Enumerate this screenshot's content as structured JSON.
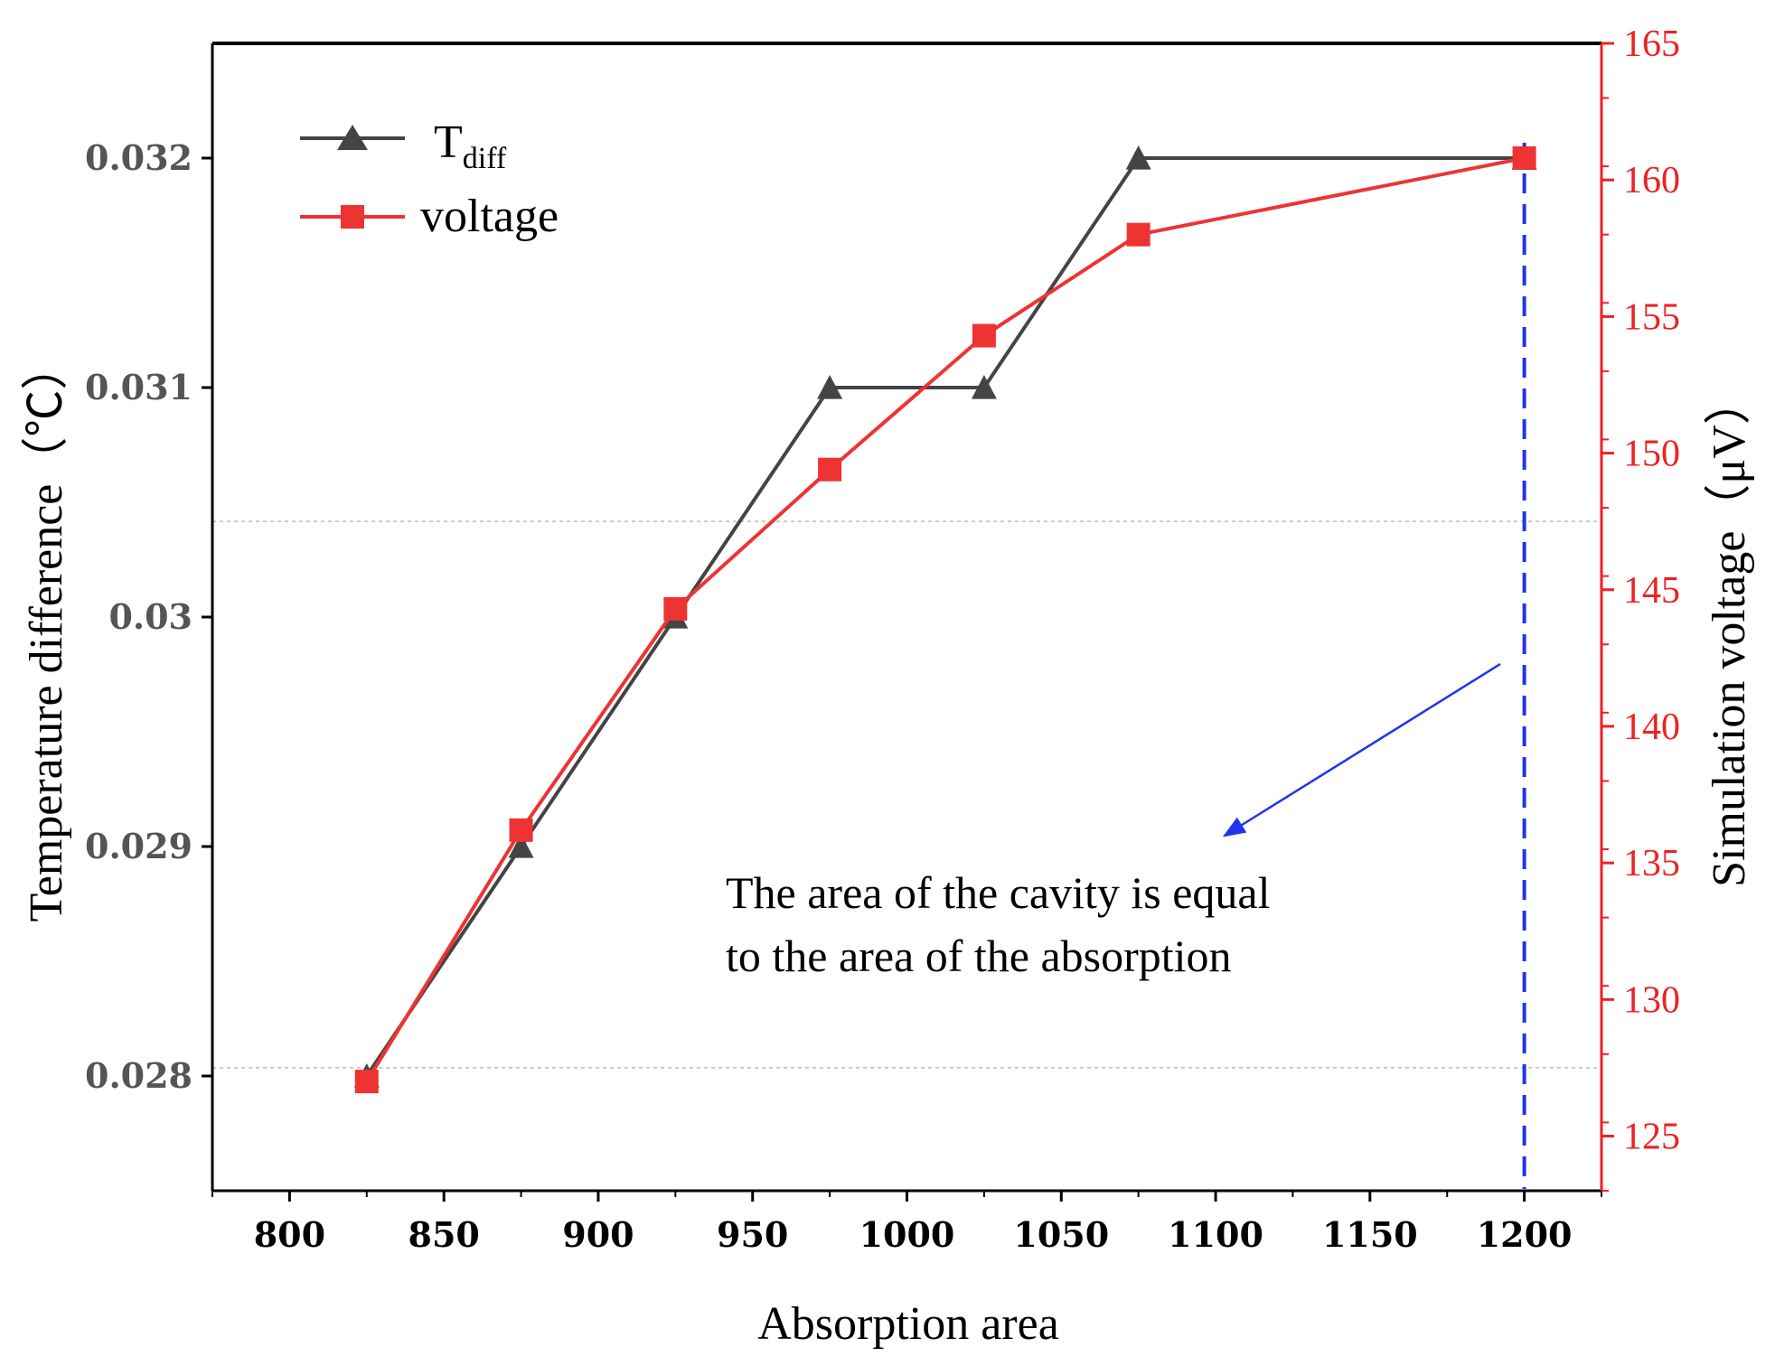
{
  "chart_data": {
    "type": "line",
    "title": "",
    "xlabel": "Absorption area",
    "ylabel_left": "Temperature difference（℃）",
    "ylabel_right": "Simulation voltage（μV）",
    "x_ticks": [
      "800",
      "850",
      "900",
      "950",
      "1000",
      "1050",
      "1100",
      "1150",
      "1200"
    ],
    "xlim": [
      775,
      1225
    ],
    "y_left_ticks": [
      "0.028",
      "0.029",
      "0.03",
      "0.031",
      "0.032"
    ],
    "y_left_tick_values": [
      0.028,
      0.029,
      0.03,
      0.031,
      0.032
    ],
    "ylim_left": [
      0.0275,
      0.0325
    ],
    "y_right_ticks": [
      "125",
      "130",
      "135",
      "140",
      "145",
      "150",
      "155",
      "160",
      "165"
    ],
    "y_right_tick_values": [
      125,
      130,
      135,
      140,
      145,
      150,
      155,
      160,
      165
    ],
    "ylim_right": [
      123,
      165
    ],
    "series": [
      {
        "name": "T",
        "name_subscript": "diff",
        "axis": "left",
        "marker": "triangle",
        "color": "#444444",
        "x": [
          825,
          875,
          925,
          975,
          1025,
          1075,
          1200
        ],
        "y": [
          0.028,
          0.029,
          0.03,
          0.031,
          0.031,
          0.032,
          0.032
        ]
      },
      {
        "name": "voltage",
        "axis": "right",
        "marker": "square",
        "color": "#ee3333",
        "x": [
          825,
          875,
          925,
          975,
          1025,
          1075,
          1200
        ],
        "y": [
          127,
          136.2,
          144.3,
          149.4,
          154.3,
          158,
          160.8
        ]
      }
    ],
    "reference_line": {
      "x": 1200,
      "style": "dashed",
      "color": "#2233ee"
    },
    "gridlines_right": [
      147.5,
      127.5
    ],
    "annotation": {
      "lines": [
        "The area of the cavity is equal",
        "to the area of the absorption"
      ],
      "arrow_color": "#2233ee"
    },
    "legend_position": "top-left"
  }
}
